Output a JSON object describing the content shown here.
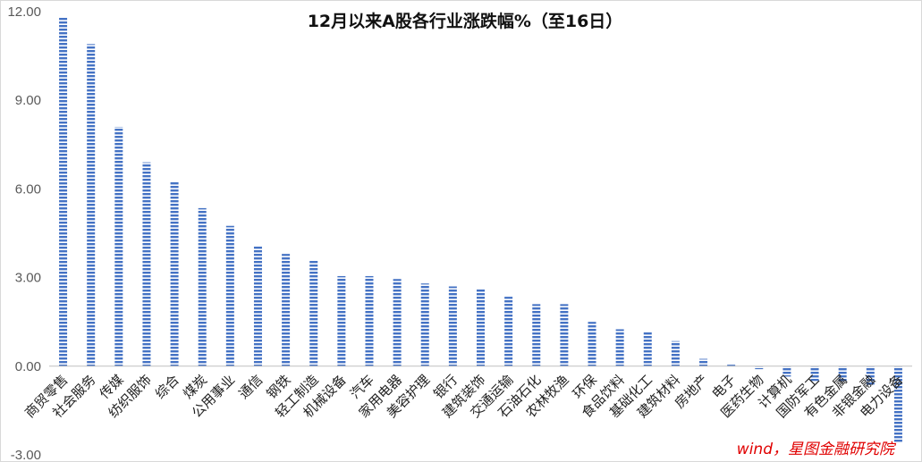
{
  "chart_data": {
    "type": "bar",
    "title": "12月以来A股各行业涨跌幅%（至16日）",
    "source": "wind，星图金融研究院",
    "ylim": [
      -3,
      12
    ],
    "yticks": [
      "12.00",
      "9.00",
      "6.00",
      "3.00",
      "0.00",
      "-3.00"
    ],
    "ytick_values": [
      12,
      9,
      6,
      3,
      0,
      -3
    ],
    "grid": false,
    "legend": "none",
    "bar_color": "#4472c4",
    "bar_pattern": "horizontal-stripes",
    "categories": [
      "商贸零售",
      "社会服务",
      "传媒",
      "纺织服饰",
      "综合",
      "煤炭",
      "公用事业",
      "通信",
      "钢铁",
      "轻工制造",
      "机械设备",
      "汽车",
      "家用电器",
      "美容护理",
      "银行",
      "建筑装饰",
      "交通运输",
      "石油石化",
      "农林牧渔",
      "环保",
      "食品饮料",
      "基础化工",
      "建筑材料",
      "房地产",
      "电子",
      "医药生物",
      "计算机",
      "国防军工",
      "有色金属",
      "非银金融",
      "电力设备"
    ],
    "values": [
      11.8,
      10.9,
      8.1,
      6.9,
      6.25,
      5.35,
      4.75,
      4.05,
      3.8,
      3.6,
      3.05,
      3.05,
      2.95,
      2.8,
      2.7,
      2.6,
      2.35,
      2.1,
      2.1,
      1.5,
      1.25,
      1.15,
      0.85,
      0.25,
      0.05,
      -0.1,
      -0.35,
      -0.5,
      -0.55,
      -0.65,
      -2.6
    ]
  }
}
